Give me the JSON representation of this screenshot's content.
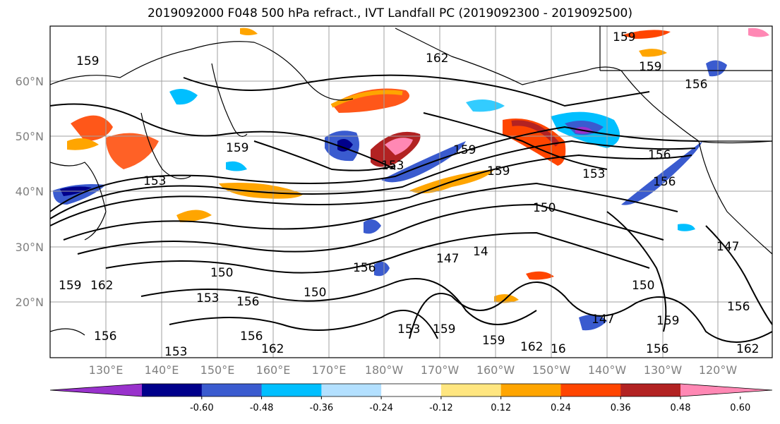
{
  "title": "2019092000 F048 500 hPa refract., IVT Landfall PC (2019092300 - 2019092500)",
  "lat_labels": [
    "60°N",
    "50°N",
    "40°N",
    "30°N",
    "20°N"
  ],
  "lon_labels": [
    "130°E",
    "140°E",
    "150°E",
    "160°E",
    "170°E",
    "180°W",
    "170°W",
    "160°W",
    "150°W",
    "140°W",
    "130°W",
    "120°W"
  ],
  "colorbar": {
    "colors": [
      "#9932cc",
      "#00008b",
      "#3a5bcf",
      "#00bfff",
      "#b3e0ff",
      "#ffffff",
      "#ffe680",
      "#ffa500",
      "#ff4500",
      "#b22222",
      "#ff88b4"
    ],
    "tick_labels": [
      "-0.60",
      "-0.48",
      "-0.36",
      "-0.24",
      "-0.12",
      "0.12",
      "0.24",
      "0.36",
      "0.48",
      "0.60"
    ]
  },
  "contour_labels": [
    "159",
    "162",
    "159",
    "156",
    "159",
    "156",
    "153",
    "159",
    "159",
    "153",
    "156",
    "159",
    "153",
    "150",
    "147",
    "147",
    "14",
    "150",
    "150",
    "153",
    "156",
    "153",
    "150",
    "156",
    "162",
    "156",
    "159",
    "153",
    "159",
    "162",
    "16",
    "147",
    "156",
    "156",
    "162",
    "156",
    "159",
    "159",
    "162"
  ]
}
